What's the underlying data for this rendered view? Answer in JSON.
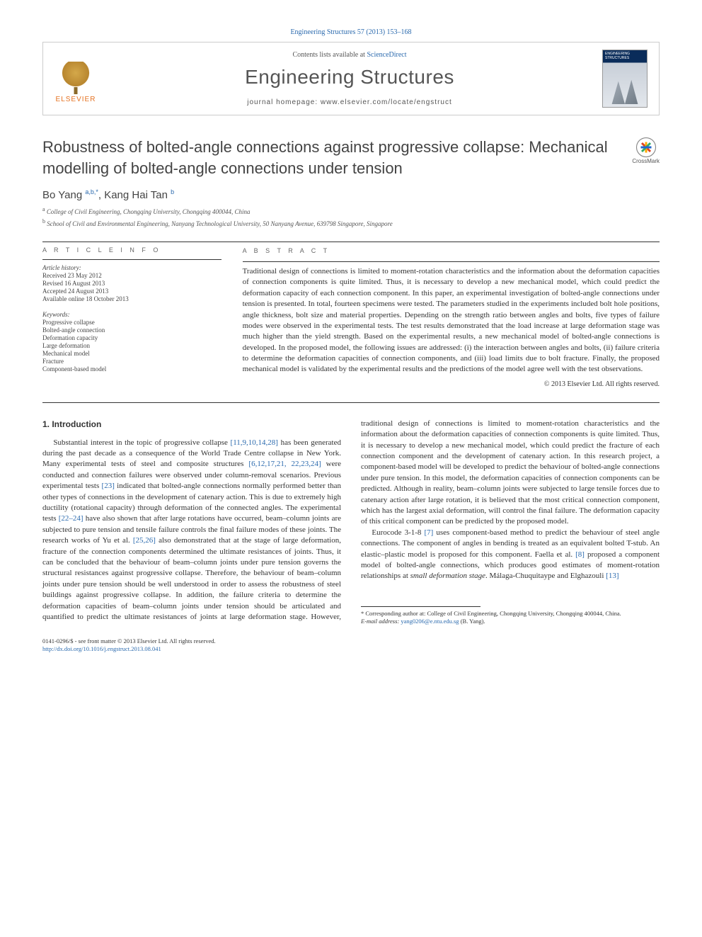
{
  "citation": "Engineering Structures 57 (2013) 153–168",
  "header": {
    "contents_prefix": "Contents lists available at ",
    "contents_link": "ScienceDirect",
    "journal": "Engineering Structures",
    "homepage_prefix": "journal homepage: ",
    "homepage": "www.elsevier.com/locate/engstruct",
    "publisher": "ELSEVIER",
    "cover_title": "ENGINEERING STRUCTURES"
  },
  "crossmark_label": "CrossMark",
  "title": "Robustness of bolted-angle connections against progressive collapse: Mechanical modelling of bolted-angle connections under tension",
  "authors_html": "Bo Yang <sup>a,b,*</sup>, Kang Hai Tan <sup>b</sup>",
  "affiliations": {
    "a": "College of Civil Engineering, Chongqing University, Chongqing 400044, China",
    "b": "School of Civil and Environmental Engineering, Nanyang Technological University, 50 Nanyang Avenue, 639798 Singapore, Singapore"
  },
  "article_info": {
    "label": "A R T I C L E   I N F O",
    "history_label": "Article history:",
    "history": [
      "Received 23 May 2012",
      "Revised 16 August 2013",
      "Accepted 24 August 2013",
      "Available online 18 October 2013"
    ],
    "keywords_label": "Keywords:",
    "keywords": [
      "Progressive collapse",
      "Bolted-angle connection",
      "Deformation capacity",
      "Large deformation",
      "Mechanical model",
      "Fracture",
      "Component-based model"
    ]
  },
  "abstract": {
    "label": "A B S T R A C T",
    "text": "Traditional design of connections is limited to moment-rotation characteristics and the information about the deformation capacities of connection components is quite limited. Thus, it is necessary to develop a new mechanical model, which could predict the deformation capacity of each connection component. In this paper, an experimental investigation of bolted-angle connections under tension is presented. In total, fourteen specimens were tested. The parameters studied in the experiments included bolt hole positions, angle thickness, bolt size and material properties. Depending on the strength ratio between angles and bolts, five types of failure modes were observed in the experimental tests. The test results demonstrated that the load increase at large deformation stage was much higher than the yield strength. Based on the experimental results, a new mechanical model of bolted-angle connections is developed. In the proposed model, the following issues are addressed: (i) the interaction between angles and bolts, (ii) failure criteria to determine the deformation capacities of connection components, and (iii) load limits due to bolt fracture. Finally, the proposed mechanical model is validated by the experimental results and the predictions of the model agree well with the test observations.",
    "copyright": "© 2013 Elsevier Ltd. All rights reserved."
  },
  "section1": {
    "heading": "1. Introduction",
    "para1_pre": "Substantial interest in the topic of progressive collapse ",
    "ref1": "[11,9,10,14,28]",
    "para1_mid1": " has been generated during the past decade as a consequence of the World Trade Centre collapse in New York. Many experimental tests of steel and composite structures ",
    "ref2": "[6,12,17,21, 22,23,24]",
    "para1_mid2": " were conducted and connection failures were observed under column-removal scenarios. Previous experimental tests ",
    "ref3": "[23]",
    "para1_mid3": " indicated that bolted-angle connections normally performed better than other types of connections in the development of catenary action. This is due to extremely high ductility (rotational capacity) through deformation of the connected angles. The experimental tests ",
    "ref4": "[22–24]",
    "para1_mid4": " have also shown that after large rotations have occurred, beam–column joints are subjected to pure tension and tensile failure controls the final failure modes of these joints. The research works of Yu et al. ",
    "ref5": "[25,26]",
    "para1_post": " also demonstrated that at the stage of large deformation, fracture of the connection components determined the ultimate resistances of joints. Thus, it can be concluded that the behaviour of beam–column joints under pure tension governs the structural resistances against progressive collapse. Therefore, the behaviour of beam–column joints under pure tension should be well understood in order to assess the robustness of steel buildings against progressive collapse. In addition, the failure criteria to determine the deformation capacities of beam–column joints under tension should be articulated and quantified to predict the ultimate resistances of joints at large deformation stage. However, traditional design of connections is limited to moment-rotation characteristics and the information about the deformation capacities of connection components is quite limited. Thus, it is necessary to develop a new mechanical model, which could predict the fracture of each connection component and the development of catenary action. In this research project, a component-based model will be developed to predict the behaviour of bolted-angle connections under pure tension. In this model, the deformation capacities of connection components can be predicted. Although in reality, beam–column joints were subjected to large tensile forces due to catenary action after large rotation, it is believed that the most critical connection component, which has the largest axial deformation, will control the final failure. The deformation capacity of this critical component can be predicted by the proposed model.",
    "para2_pre": "Eurocode 3-1-8 ",
    "ref6": "[7]",
    "para2_mid1": " uses component-based method to predict the behaviour of steel angle connections. The component of angles in bending is treated as an equivalent bolted T-stub. An elastic–plastic model is proposed for this component. Faella et al. ",
    "ref7": "[8]",
    "para2_mid2": " proposed a component model of bolted-angle connections, which produces good estimates of moment-rotation relationships at ",
    "para2_ital": "small deformation stage",
    "para2_mid3": ". Málaga-Chuquitaype and Elghazouli ",
    "ref8": "[13]"
  },
  "footnotes": {
    "corr": "* Corresponding author at: College of Civil Engineering, Chongqing University, Chongqing 400044, China.",
    "email_label": "E-mail address: ",
    "email": "yang0206@e.ntu.edu.sg",
    "email_who": " (B. Yang)."
  },
  "bottom": {
    "line1": "0141-0296/$ - see front matter © 2013 Elsevier Ltd. All rights reserved.",
    "doi": "http://dx.doi.org/10.1016/j.engstruct.2013.08.041"
  },
  "colors": {
    "link": "#2b6aae",
    "text": "#333333",
    "accent_orange": "#e57222"
  }
}
